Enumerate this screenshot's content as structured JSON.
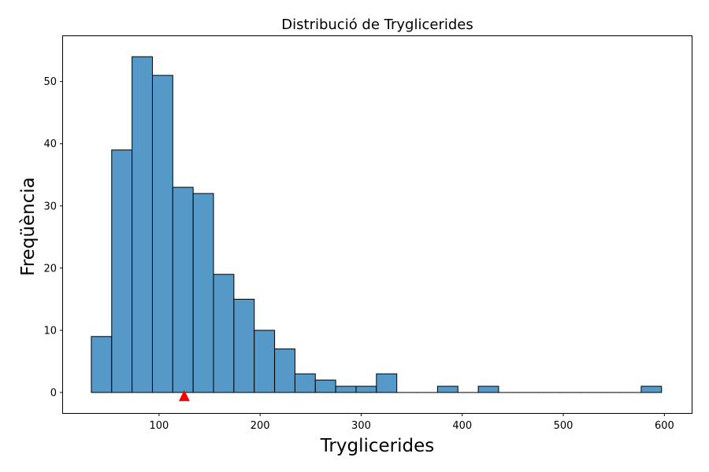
{
  "chart_data": {
    "type": "bar",
    "title": "Distribució de Tryglicerides",
    "xlabel": "Tryglicerides",
    "ylabel": "Freqüència",
    "bin_edges": [
      33.0,
      53.15,
      73.3,
      93.45,
      113.6,
      133.75,
      153.9,
      174.05,
      194.2,
      214.35,
      234.5,
      254.65,
      274.8,
      294.95,
      315.1,
      335.25,
      355.4,
      375.55,
      395.7,
      415.85,
      436.0,
      456.15,
      476.3,
      496.45,
      516.6,
      536.75,
      556.9,
      577.05,
      597.2
    ],
    "counts": [
      9,
      39,
      54,
      51,
      33,
      32,
      19,
      15,
      10,
      7,
      3,
      2,
      1,
      1,
      3,
      0,
      0,
      1,
      0,
      1,
      0,
      0,
      0,
      0,
      0,
      0,
      0,
      1
    ],
    "xlim": [
      5.0,
      627.0
    ],
    "ylim": [
      -3.3,
      57.3
    ],
    "xticks": [
      100,
      200,
      300,
      400,
      500,
      600
    ],
    "yticks": [
      0,
      10,
      20,
      30,
      40,
      50
    ],
    "marker": {
      "x": 125,
      "y": -0.5,
      "shape": "triangle",
      "color": "#ff0000"
    },
    "bar_color": "#5499c7",
    "bar_edge_color": "#000000",
    "grid": false,
    "legend": "none"
  }
}
